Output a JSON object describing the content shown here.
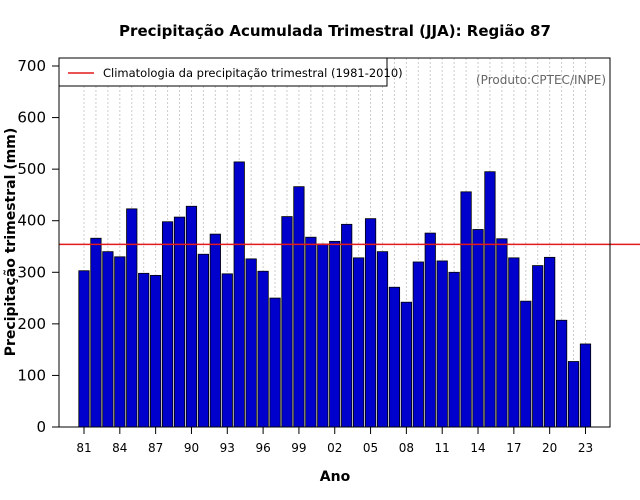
{
  "colors": {
    "bar_fill": "#0000cc",
    "bar_stroke": "#000000",
    "climatology_line": "#e31a1c",
    "grid": "#cccccc",
    "credit_text": "#666666"
  },
  "chart_data": {
    "type": "bar",
    "title": "Precipitação Acumulada Trimestral (JJA): Região 87",
    "xlabel": "Ano",
    "ylabel": "Precipitação trimestral (mm)",
    "credit": "(Produto:CPTEC/INPE)",
    "ylim": [
      0,
      700
    ],
    "yticks": [
      0,
      100,
      200,
      300,
      400,
      500,
      600,
      700
    ],
    "ytick_labels": [
      "0",
      "100",
      "200",
      "300",
      "400",
      "500",
      "600",
      "700"
    ],
    "categories": [
      "1981",
      "1982",
      "1983",
      "1984",
      "1985",
      "1986",
      "1987",
      "1988",
      "1989",
      "1990",
      "1991",
      "1992",
      "1993",
      "1994",
      "1995",
      "1996",
      "1997",
      "1998",
      "1999",
      "2000",
      "2001",
      "2002",
      "2003",
      "2004",
      "2005",
      "2006",
      "2007",
      "2008",
      "2009",
      "2010",
      "2011",
      "2012",
      "2013",
      "2014",
      "2015",
      "2016",
      "2017",
      "2018",
      "2019",
      "2020",
      "2021",
      "2022",
      "2023"
    ],
    "values": [
      303,
      366,
      340,
      330,
      423,
      298,
      294,
      398,
      407,
      428,
      335,
      374,
      297,
      514,
      326,
      302,
      250,
      408,
      466,
      368,
      355,
      360,
      393,
      328,
      404,
      340,
      271,
      242,
      320,
      376,
      322,
      300,
      456,
      383,
      495,
      365,
      328,
      244,
      313,
      329,
      207,
      127,
      161
    ],
    "xtick_indices": [
      0,
      3,
      6,
      9,
      12,
      15,
      18,
      21,
      24,
      27,
      30,
      33,
      36,
      39,
      42
    ],
    "xtick_labels": [
      "81",
      "84",
      "87",
      "90",
      "93",
      "96",
      "99",
      "02",
      "05",
      "08",
      "11",
      "14",
      "17",
      "20",
      "23"
    ],
    "grid": true,
    "reference_lines": [
      {
        "name": "Climatologia da precipitação trimestral (1981-2010)",
        "value": 354
      }
    ],
    "legend": {
      "position": "top-left",
      "entries": [
        "Climatologia da precipitação trimestral (1981-2010)"
      ]
    }
  }
}
